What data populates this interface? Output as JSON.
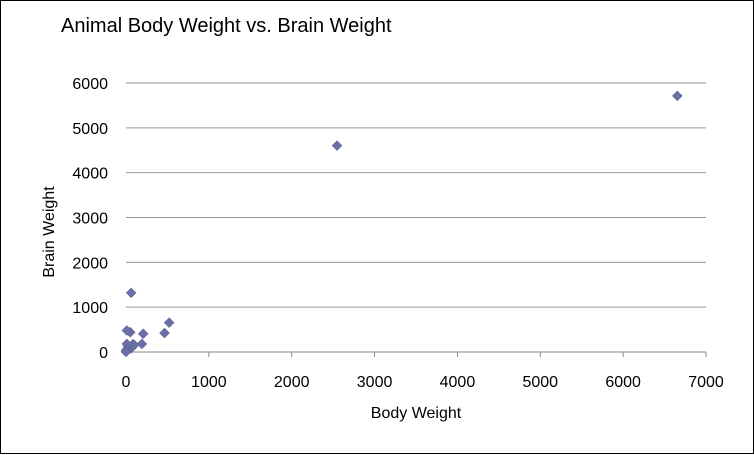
{
  "chart_data": {
    "type": "scatter",
    "title": "Animal Body Weight vs. Brain Weight",
    "xlabel": "Body Weight",
    "ylabel": "Brain Weight",
    "xlim": [
      0,
      7000
    ],
    "ylim": [
      0,
      6000
    ],
    "x_ticks": [
      0,
      1000,
      2000,
      3000,
      4000,
      5000,
      6000,
      7000
    ],
    "y_ticks": [
      0,
      1000,
      2000,
      3000,
      4000,
      5000,
      6000
    ],
    "x_tick_labels": [
      "0",
      "1000",
      "2000",
      "3000",
      "4000",
      "5000",
      "6000",
      "7000"
    ],
    "y_tick_labels": [
      "0",
      "1000",
      "2000",
      "3000",
      "4000",
      "5000",
      "6000"
    ],
    "grid": "horizontal",
    "legend": "none",
    "marker": "diamond",
    "marker_color": "#6b6fa8",
    "points": [
      {
        "x": 6654,
        "y": 5712
      },
      {
        "x": 2547,
        "y": 4603
      },
      {
        "x": 62,
        "y": 1320
      },
      {
        "x": 521,
        "y": 655
      },
      {
        "x": 465,
        "y": 423
      },
      {
        "x": 207,
        "y": 406
      },
      {
        "x": 52,
        "y": 440
      },
      {
        "x": 10,
        "y": 480
      },
      {
        "x": 192,
        "y": 180
      },
      {
        "x": 85,
        "y": 175
      },
      {
        "x": 100,
        "y": 157
      },
      {
        "x": 36,
        "y": 119
      },
      {
        "x": 27,
        "y": 115
      },
      {
        "x": 10,
        "y": 180
      },
      {
        "x": 60,
        "y": 81
      },
      {
        "x": 3,
        "y": 25
      },
      {
        "x": 1,
        "y": 6
      },
      {
        "x": 6,
        "y": 50
      },
      {
        "x": 4,
        "y": 12
      },
      {
        "x": 0.5,
        "y": 2
      }
    ]
  }
}
